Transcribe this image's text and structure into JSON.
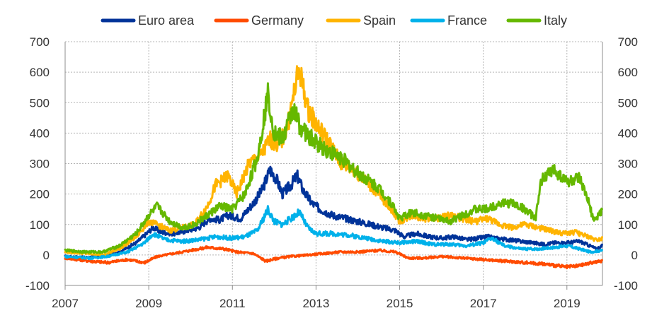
{
  "chart_data": {
    "type": "line",
    "title": "",
    "xlabel": "",
    "ylabel": "",
    "xlim": [
      2007,
      2019.85
    ],
    "ylim": [
      -100,
      700
    ],
    "yticks": [
      -100,
      0,
      100,
      200,
      300,
      400,
      500,
      600,
      700
    ],
    "xticks": [
      "2007",
      "2009",
      "2011",
      "2013",
      "2015",
      "2017",
      "2019"
    ],
    "grid": true,
    "dual_y_axis": true,
    "legend_position": "top",
    "series": [
      {
        "name": "Euro area",
        "color": "#003399",
        "x": [
          2007,
          2007.5,
          2007.9,
          2008.3,
          2008.7,
          2008.95,
          2009.1,
          2009.3,
          2009.6,
          2009.9,
          2010.2,
          2010.45,
          2010.7,
          2010.9,
          2011.2,
          2011.5,
          2011.7,
          2011.9,
          2012.05,
          2012.2,
          2012.4,
          2012.55,
          2012.7,
          2012.9,
          2013.1,
          2013.4,
          2013.7,
          2014.0,
          2014.3,
          2014.6,
          2014.9,
          2015.1,
          2015.4,
          2015.7,
          2016.0,
          2016.3,
          2016.6,
          2016.9,
          2017.1,
          2017.3,
          2017.6,
          2017.9,
          2018.2,
          2018.45,
          2018.7,
          2019.0,
          2019.3,
          2019.55,
          2019.7,
          2019.85
        ],
        "y": [
          -5,
          -8,
          -5,
          10,
          40,
          70,
          90,
          75,
          70,
          80,
          90,
          120,
          115,
          130,
          120,
          170,
          210,
          280,
          250,
          200,
          230,
          260,
          210,
          170,
          150,
          130,
          120,
          110,
          100,
          90,
          80,
          60,
          70,
          60,
          55,
          60,
          50,
          55,
          60,
          55,
          50,
          45,
          40,
          35,
          40,
          40,
          45,
          30,
          20,
          30
        ]
      },
      {
        "name": "Germany",
        "color": "#ff4b00",
        "x": [
          2007,
          2007.6,
          2008.0,
          2008.5,
          2008.9,
          2009.2,
          2009.6,
          2010.0,
          2010.4,
          2010.8,
          2011.1,
          2011.5,
          2011.8,
          2012.1,
          2012.4,
          2012.8,
          2013.2,
          2013.6,
          2014.0,
          2014.5,
          2014.9,
          2015.2,
          2015.6,
          2016.0,
          2016.5,
          2017.0,
          2017.5,
          2018.0,
          2018.5,
          2019.0,
          2019.3,
          2019.6,
          2019.85
        ],
        "y": [
          -10,
          -20,
          -25,
          -15,
          -25,
          -5,
          5,
          15,
          25,
          20,
          10,
          5,
          -20,
          -10,
          -5,
          0,
          5,
          10,
          10,
          15,
          10,
          -10,
          -10,
          -5,
          -10,
          -15,
          -20,
          -25,
          -30,
          -40,
          -35,
          -25,
          -20
        ]
      },
      {
        "name": "Spain",
        "color": "#ffb400",
        "x": [
          2007,
          2007.5,
          2007.9,
          2008.3,
          2008.7,
          2009.0,
          2009.2,
          2009.5,
          2009.8,
          2010.1,
          2010.4,
          2010.6,
          2010.9,
          2011.1,
          2011.4,
          2011.7,
          2011.9,
          2012.1,
          2012.3,
          2012.5,
          2012.6,
          2012.8,
          2013.0,
          2013.3,
          2013.6,
          2013.9,
          2014.2,
          2014.5,
          2014.8,
          2015.0,
          2015.3,
          2015.6,
          2015.9,
          2016.2,
          2016.5,
          2016.8,
          2017.1,
          2017.4,
          2017.7,
          2018.0,
          2018.3,
          2018.6,
          2018.9,
          2019.2,
          2019.5,
          2019.7,
          2019.85
        ],
        "y": [
          10,
          5,
          0,
          20,
          60,
          110,
          100,
          80,
          90,
          100,
          160,
          230,
          260,
          200,
          300,
          330,
          380,
          360,
          410,
          550,
          610,
          480,
          430,
          370,
          300,
          280,
          240,
          200,
          150,
          110,
          130,
          120,
          120,
          130,
          120,
          110,
          120,
          100,
          90,
          100,
          90,
          80,
          70,
          75,
          60,
          50,
          55
        ]
      },
      {
        "name": "France",
        "color": "#00b1ea",
        "x": [
          2007,
          2007.6,
          2008.0,
          2008.5,
          2008.9,
          2009.1,
          2009.4,
          2009.8,
          2010.2,
          2010.6,
          2011.0,
          2011.3,
          2011.6,
          2011.85,
          2012.0,
          2012.2,
          2012.4,
          2012.6,
          2012.8,
          2013.0,
          2013.4,
          2013.8,
          2014.2,
          2014.6,
          2015.0,
          2015.4,
          2015.8,
          2016.2,
          2016.6,
          2017.0,
          2017.2,
          2017.5,
          2017.9,
          2018.3,
          2018.7,
          2019.0,
          2019.3,
          2019.55,
          2019.85
        ],
        "y": [
          -5,
          -10,
          -5,
          10,
          40,
          70,
          50,
          45,
          50,
          60,
          55,
          60,
          80,
          150,
          110,
          100,
          120,
          140,
          90,
          70,
          70,
          65,
          55,
          45,
          40,
          45,
          35,
          35,
          30,
          40,
          55,
          30,
          20,
          20,
          25,
          30,
          20,
          10,
          15
        ]
      },
      {
        "name": "Italy",
        "color": "#65b800",
        "x": [
          2007,
          2007.5,
          2007.9,
          2008.3,
          2008.7,
          2009.0,
          2009.2,
          2009.5,
          2009.8,
          2010.1,
          2010.4,
          2010.7,
          2011.0,
          2011.3,
          2011.6,
          2011.85,
          2012.0,
          2012.2,
          2012.45,
          2012.6,
          2012.8,
          2013.0,
          2013.3,
          2013.6,
          2013.9,
          2014.2,
          2014.5,
          2014.8,
          2015.0,
          2015.3,
          2015.6,
          2015.9,
          2016.2,
          2016.5,
          2016.8,
          2017.1,
          2017.4,
          2017.7,
          2018.0,
          2018.25,
          2018.4,
          2018.7,
          2019.0,
          2019.3,
          2019.5,
          2019.65,
          2019.85
        ],
        "y": [
          15,
          10,
          10,
          30,
          70,
          130,
          160,
          110,
          90,
          100,
          130,
          160,
          150,
          200,
          320,
          530,
          400,
          380,
          480,
          430,
          390,
          370,
          340,
          320,
          280,
          250,
          220,
          170,
          120,
          140,
          130,
          120,
          110,
          130,
          150,
          150,
          170,
          170,
          150,
          120,
          250,
          280,
          240,
          250,
          180,
          110,
          150
        ]
      }
    ]
  }
}
